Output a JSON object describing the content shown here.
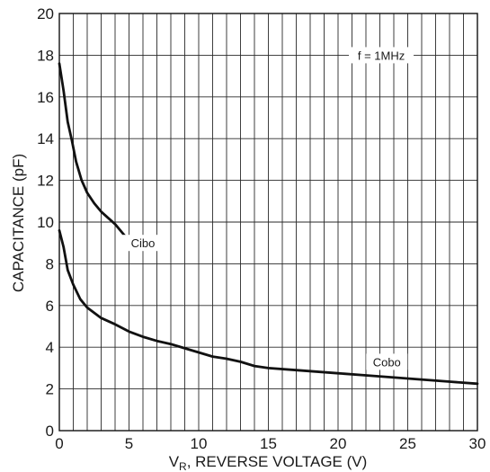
{
  "chart_data": {
    "type": "line",
    "xlabel": {
      "main": "V",
      "sub": "R",
      "rest": ", REVERSE VOLTAGE (V)"
    },
    "ylabel": "CAPACITANCE (pF)",
    "xlim": [
      0,
      30
    ],
    "ylim": [
      0,
      20
    ],
    "x_ticks": [
      0,
      5,
      10,
      15,
      20,
      25,
      30
    ],
    "y_ticks": [
      0,
      2,
      4,
      6,
      8,
      10,
      12,
      14,
      16,
      18,
      20
    ],
    "grid": {
      "x_minor_step": 1,
      "y_step": 2
    },
    "annotation": "f = 1MHz",
    "line_color": "#111111",
    "series": [
      {
        "name": "Cibo",
        "points": [
          [
            0,
            17.6
          ],
          [
            0.3,
            16.3
          ],
          [
            0.6,
            14.8
          ],
          [
            0.9,
            13.9
          ],
          [
            1.2,
            12.9
          ],
          [
            1.6,
            12.0
          ],
          [
            2.0,
            11.4
          ],
          [
            2.5,
            10.9
          ],
          [
            3.0,
            10.5
          ],
          [
            3.5,
            10.2
          ],
          [
            4.0,
            9.9
          ],
          [
            4.5,
            9.5
          ],
          [
            5.0,
            9.1
          ]
        ]
      },
      {
        "name": "Cobo",
        "points": [
          [
            0,
            9.6
          ],
          [
            0.3,
            8.8
          ],
          [
            0.6,
            7.7
          ],
          [
            1.0,
            7.0
          ],
          [
            1.5,
            6.3
          ],
          [
            2.0,
            5.9
          ],
          [
            3.0,
            5.4
          ],
          [
            4.0,
            5.1
          ],
          [
            5.0,
            4.75
          ],
          [
            6.0,
            4.5
          ],
          [
            7.0,
            4.3
          ],
          [
            8.0,
            4.15
          ],
          [
            9.0,
            3.95
          ],
          [
            10.0,
            3.75
          ],
          [
            11.0,
            3.55
          ],
          [
            12.0,
            3.45
          ],
          [
            13.0,
            3.3
          ],
          [
            14.0,
            3.1
          ],
          [
            15.0,
            3.0
          ],
          [
            17.0,
            2.9
          ],
          [
            20.0,
            2.75
          ],
          [
            22.0,
            2.65
          ],
          [
            25.0,
            2.5
          ],
          [
            28.0,
            2.35
          ],
          [
            30.0,
            2.25
          ]
        ]
      }
    ]
  }
}
